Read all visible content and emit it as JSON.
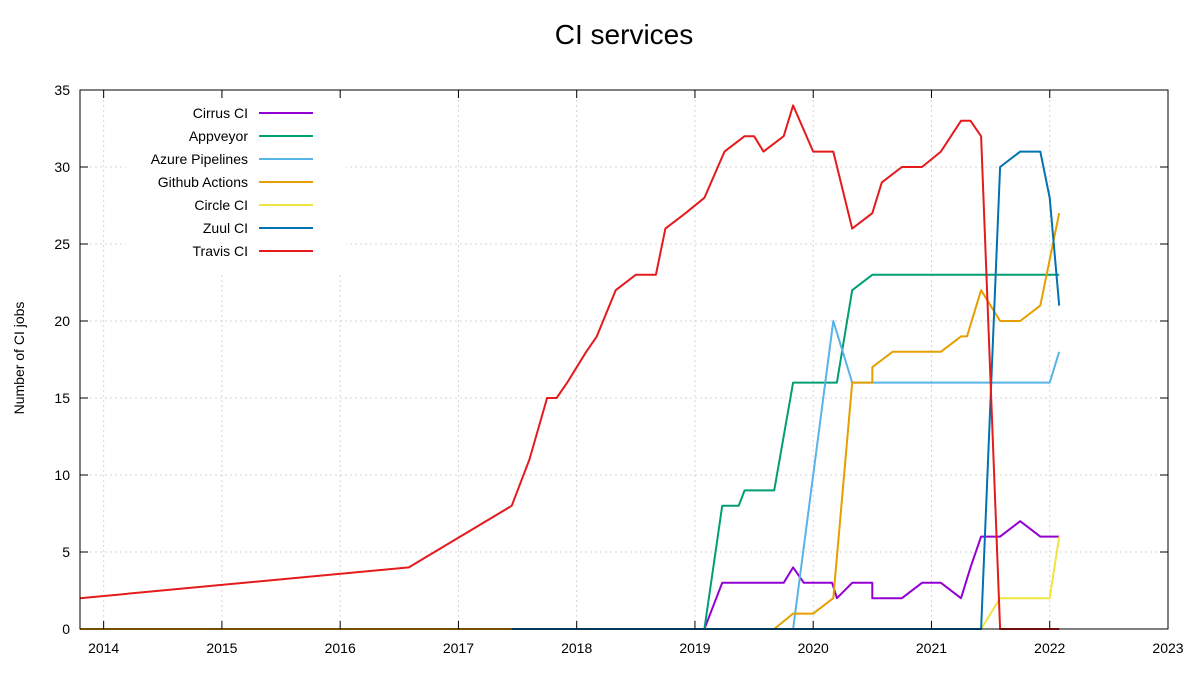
{
  "chart_data": {
    "type": "line",
    "title": "CI services",
    "ylabel": "Number of CI jobs",
    "xlabel": "",
    "xlim": [
      2013.8,
      2023.0
    ],
    "ylim": [
      0,
      35
    ],
    "xticks": [
      2014,
      2015,
      2016,
      2017,
      2018,
      2019,
      2020,
      2021,
      2022,
      2023
    ],
    "yticks": [
      0,
      5,
      10,
      15,
      20,
      25,
      30,
      35
    ],
    "grid": true,
    "legend": "top-left",
    "series": [
      {
        "name": "Cirrus CI",
        "color": "#9400d3",
        "points": [
          [
            2017.45,
            0
          ],
          [
            2019.08,
            0
          ],
          [
            2019.23,
            3
          ],
          [
            2019.5,
            3
          ],
          [
            2019.75,
            3
          ],
          [
            2019.83,
            4
          ],
          [
            2019.92,
            3
          ],
          [
            2020.0,
            3
          ],
          [
            2020.16,
            3
          ],
          [
            2020.2,
            2
          ],
          [
            2020.33,
            3
          ],
          [
            2020.5,
            3
          ],
          [
            2020.5,
            2
          ],
          [
            2020.75,
            2
          ],
          [
            2020.92,
            3
          ],
          [
            2021.08,
            3
          ],
          [
            2021.25,
            2
          ],
          [
            2021.33,
            4
          ],
          [
            2021.42,
            6
          ],
          [
            2021.58,
            6
          ],
          [
            2021.75,
            7
          ],
          [
            2021.92,
            6
          ],
          [
            2022.08,
            6
          ]
        ]
      },
      {
        "name": "Appveyor",
        "color": "#009e73",
        "points": [
          [
            2017.45,
            0
          ],
          [
            2019.08,
            0
          ],
          [
            2019.23,
            8
          ],
          [
            2019.37,
            8
          ],
          [
            2019.42,
            9
          ],
          [
            2019.67,
            9
          ],
          [
            2019.83,
            16
          ],
          [
            2020.0,
            16
          ],
          [
            2020.2,
            16
          ],
          [
            2020.33,
            22
          ],
          [
            2020.5,
            23
          ],
          [
            2021.0,
            23
          ],
          [
            2021.5,
            23
          ],
          [
            2022.08,
            23
          ]
        ]
      },
      {
        "name": "Azure Pipelines",
        "color": "#56b4e9",
        "points": [
          [
            2017.45,
            0
          ],
          [
            2019.83,
            0
          ],
          [
            2020.17,
            20
          ],
          [
            2020.33,
            16
          ],
          [
            2020.5,
            16
          ],
          [
            2021.0,
            16
          ],
          [
            2021.5,
            16
          ],
          [
            2022.0,
            16
          ],
          [
            2022.08,
            18
          ]
        ]
      },
      {
        "name": "Github Actions",
        "color": "#e69f00",
        "points": [
          [
            2013.8,
            0
          ],
          [
            2017.45,
            0
          ],
          [
            2019.67,
            0
          ],
          [
            2019.83,
            1
          ],
          [
            2020.0,
            1
          ],
          [
            2020.17,
            2
          ],
          [
            2020.33,
            16
          ],
          [
            2020.5,
            16
          ],
          [
            2020.5,
            17
          ],
          [
            2020.67,
            18
          ],
          [
            2021.08,
            18
          ],
          [
            2021.25,
            19
          ],
          [
            2021.3,
            19
          ],
          [
            2021.42,
            22
          ],
          [
            2021.58,
            20
          ],
          [
            2021.75,
            20
          ],
          [
            2021.92,
            21
          ],
          [
            2022.08,
            27
          ]
        ]
      },
      {
        "name": "Circle CI",
        "color": "#f0e442",
        "points": [
          [
            2017.45,
            0
          ],
          [
            2021.42,
            0
          ],
          [
            2021.58,
            2
          ],
          [
            2021.75,
            2
          ],
          [
            2022.0,
            2
          ],
          [
            2022.08,
            6
          ]
        ]
      },
      {
        "name": "Zuul CI",
        "color": "#0072b2",
        "points": [
          [
            2017.45,
            0
          ],
          [
            2021.42,
            0
          ],
          [
            2021.58,
            30
          ],
          [
            2021.75,
            31
          ],
          [
            2021.92,
            31
          ],
          [
            2022.0,
            28
          ],
          [
            2022.08,
            21
          ]
        ]
      },
      {
        "name": "Travis CI",
        "color": "#e41a1c",
        "points": [
          [
            2013.8,
            2
          ],
          [
            2016.58,
            4
          ],
          [
            2017.45,
            8
          ],
          [
            2017.6,
            11
          ],
          [
            2017.75,
            15
          ],
          [
            2017.83,
            15
          ],
          [
            2017.92,
            16
          ],
          [
            2018.08,
            18
          ],
          [
            2018.17,
            19
          ],
          [
            2018.33,
            22
          ],
          [
            2018.5,
            23
          ],
          [
            2018.67,
            23
          ],
          [
            2018.75,
            26
          ],
          [
            2018.92,
            27
          ],
          [
            2019.08,
            28
          ],
          [
            2019.25,
            31
          ],
          [
            2019.42,
            32
          ],
          [
            2019.5,
            32
          ],
          [
            2019.58,
            31
          ],
          [
            2019.75,
            32
          ],
          [
            2019.83,
            34
          ],
          [
            2020.0,
            31
          ],
          [
            2020.17,
            31
          ],
          [
            2020.33,
            26
          ],
          [
            2020.5,
            27
          ],
          [
            2020.58,
            29
          ],
          [
            2020.75,
            30
          ],
          [
            2020.92,
            30
          ],
          [
            2021.08,
            31
          ],
          [
            2021.25,
            33
          ],
          [
            2021.33,
            33
          ],
          [
            2021.42,
            32
          ],
          [
            2021.58,
            0
          ],
          [
            2022.08,
            0
          ]
        ]
      }
    ]
  }
}
